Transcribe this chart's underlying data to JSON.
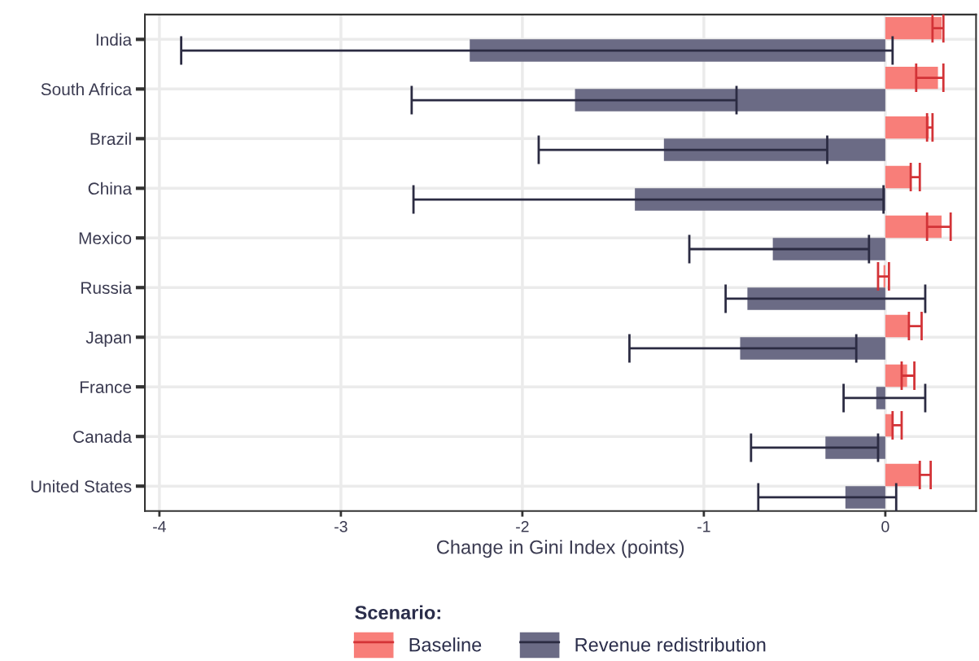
{
  "chart_data": {
    "type": "bar",
    "orientation": "horizontal",
    "categories": [
      "India",
      "South Africa",
      "Brazil",
      "China",
      "Mexico",
      "Russia",
      "Japan",
      "France",
      "Canada",
      "United States"
    ],
    "series": [
      {
        "name": "Baseline",
        "color": "#f87e79",
        "values": [
          0.31,
          0.29,
          0.24,
          0.14,
          0.31,
          -0.01,
          0.13,
          0.12,
          0.04,
          0.19
        ],
        "errors": [
          [
            0.26,
            0.32
          ],
          [
            0.17,
            0.32
          ],
          [
            0.23,
            0.26
          ],
          [
            0.14,
            0.19
          ],
          [
            0.23,
            0.36
          ],
          [
            -0.04,
            0.02
          ],
          [
            0.13,
            0.2
          ],
          [
            0.09,
            0.16
          ],
          [
            0.04,
            0.09
          ],
          [
            0.19,
            0.25
          ]
        ]
      },
      {
        "name": "Revenue redistribution",
        "color": "#6b6b85",
        "values": [
          -2.29,
          -1.71,
          -1.22,
          -1.38,
          -0.62,
          -0.76,
          -0.8,
          -0.05,
          -0.33,
          -0.22
        ],
        "errors": [
          [
            -3.88,
            0.04
          ],
          [
            -2.61,
            -0.82
          ],
          [
            -1.91,
            -0.32
          ],
          [
            -2.6,
            -0.01
          ],
          [
            -1.08,
            -0.09
          ],
          [
            -0.88,
            0.22
          ],
          [
            -1.41,
            -0.16
          ],
          [
            -0.23,
            0.22
          ],
          [
            -0.74,
            -0.04
          ],
          [
            -0.7,
            0.06
          ]
        ]
      }
    ],
    "xlabel": "Change in Gini Index (points)",
    "legend_title": "Scenario:",
    "xlim": [
      -4.08,
      0.5
    ],
    "xticks": [
      -4,
      -3,
      -2,
      -1,
      0
    ],
    "grid": true,
    "legend": "bottom"
  }
}
